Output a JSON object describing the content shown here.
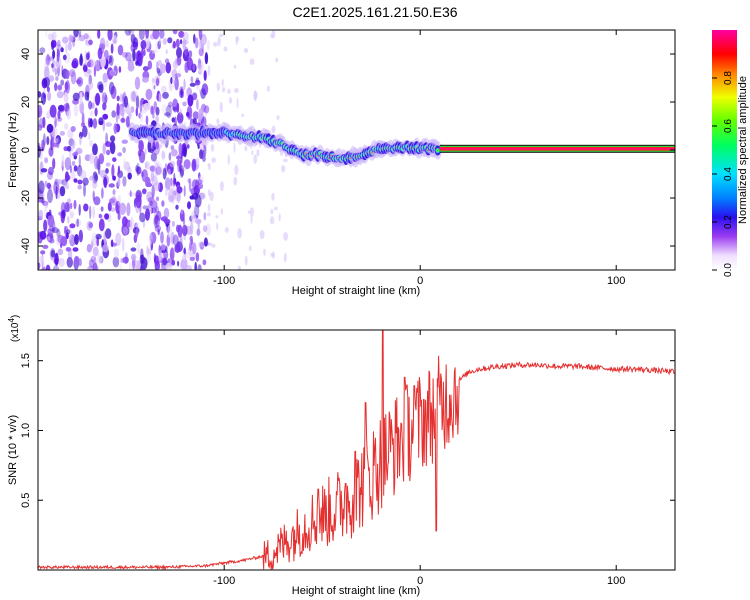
{
  "title": "C2E1.2025.161.21.50.E36",
  "colors": {
    "signal": "#e53030",
    "background": "#ffffff",
    "axis": "#000000"
  },
  "chart_data": [
    {
      "type": "heatmap",
      "name": "spectrogram",
      "xlabel": "Height of straight line (km)",
      "ylabel": "Frequency (Hz)",
      "xlim": [
        -195,
        130
      ],
      "ylim": [
        -50,
        50
      ],
      "x_ticks": [
        -100,
        0,
        100
      ],
      "x_tick_labels": [
        "-100",
        "0",
        "100"
      ],
      "y_ticks": [
        40,
        20,
        0,
        -20,
        -40
      ],
      "y_tick_labels": [
        "40",
        "20",
        "0",
        "-20",
        "-40"
      ],
      "colorbar_label": "Normalized spectral amplitude",
      "colorbar_ticks": [
        0.0,
        0.2,
        0.4,
        0.6,
        0.8
      ],
      "colorbar_tick_labels": [
        "0.0",
        "0.2",
        "0.4",
        "0.6",
        "0.8"
      ],
      "colorbar_range": [
        0,
        1
      ],
      "noise_region_x": [
        -195,
        -108
      ],
      "line_x_start": 10,
      "ridge": [
        {
          "x": -147,
          "freq": 7
        },
        {
          "x": -130,
          "freq": 7
        },
        {
          "x": -115,
          "freq": 7
        },
        {
          "x": -100,
          "freq": 7
        },
        {
          "x": -90,
          "freq": 6
        },
        {
          "x": -80,
          "freq": 5
        },
        {
          "x": -70,
          "freq": 2
        },
        {
          "x": -60,
          "freq": -2
        },
        {
          "x": -50,
          "freq": -2
        },
        {
          "x": -40,
          "freq": -4
        },
        {
          "x": -30,
          "freq": -2
        },
        {
          "x": -20,
          "freq": 1
        },
        {
          "x": -10,
          "freq": 1
        },
        {
          "x": 0,
          "freq": 0.5
        },
        {
          "x": 10,
          "freq": 0.5
        }
      ]
    },
    {
      "type": "line",
      "name": "snr",
      "xlabel": "Height of straight line (km)",
      "ylabel": "SNR (10 * v/v)",
      "y_scale_label": "(x10",
      "y_scale_exp": "4",
      "xlim": [
        -195,
        130
      ],
      "ylim": [
        0,
        1.72
      ],
      "x_ticks": [
        -100,
        0,
        100
      ],
      "x_tick_labels": [
        "-100",
        "0",
        "100"
      ],
      "y_ticks": [
        0.5,
        1.0,
        1.5
      ],
      "y_tick_labels": [
        "0.5",
        "1.0",
        "1.5"
      ],
      "series": [
        {
          "name": "SNR",
          "x": [
            -195,
            -170,
            -150,
            -130,
            -110,
            -100,
            -90,
            -80,
            -75,
            -70,
            -65,
            -60,
            -55,
            -50,
            -45,
            -40,
            -35,
            -30,
            -25,
            -20,
            -15,
            -10,
            -5,
            0,
            5,
            10,
            15,
            20,
            25,
            30,
            40,
            50,
            60,
            70,
            80,
            90,
            100,
            110,
            120,
            130
          ],
          "values": [
            0.02,
            0.02,
            0.02,
            0.02,
            0.03,
            0.05,
            0.07,
            0.1,
            0.14,
            0.2,
            0.26,
            0.32,
            0.38,
            0.42,
            0.45,
            0.5,
            0.56,
            0.64,
            0.72,
            0.82,
            0.9,
            0.98,
            1.04,
            1.1,
            1.15,
            1.22,
            1.28,
            1.36,
            1.42,
            1.44,
            1.46,
            1.47,
            1.47,
            1.46,
            1.46,
            1.45,
            1.44,
            1.44,
            1.43,
            1.42
          ]
        }
      ],
      "spikes": [
        {
          "x": -19,
          "value": 1.72
        },
        {
          "x": -28,
          "value": 1.2
        },
        {
          "x": -33,
          "value": 0.85
        },
        {
          "x": -38,
          "value": 0.62
        },
        {
          "x": -52,
          "value": 0.58
        },
        {
          "x": 8,
          "value": 0.28
        },
        {
          "x": -8,
          "value": 1.38
        },
        {
          "x": -3,
          "value": 1.32
        }
      ]
    }
  ]
}
